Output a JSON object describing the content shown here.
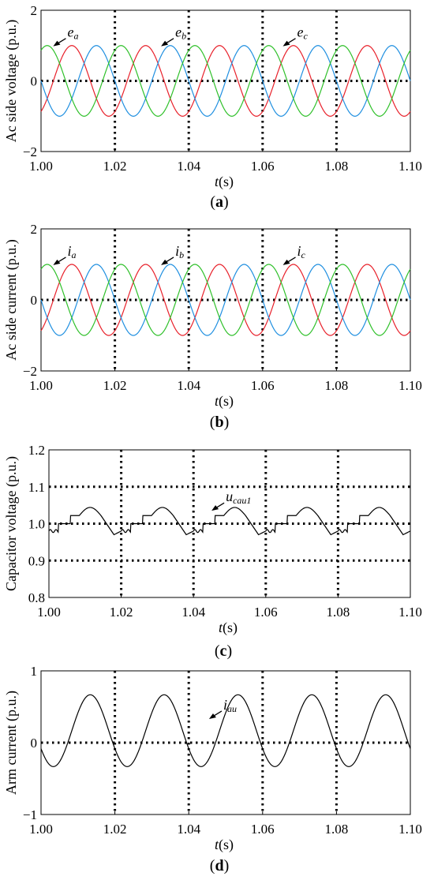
{
  "chart_data": [
    {
      "id": "a",
      "type": "line",
      "caption": {
        "open": "(",
        "letter": "a",
        "close": ")"
      },
      "ylabel": "Ac side voltage  (p.u.)",
      "xlabel": {
        "var": "t",
        "unit": "(s)"
      },
      "xlim": [
        1.0,
        1.1
      ],
      "ylim": [
        -2,
        2
      ],
      "xticks": [
        "1.00",
        "1.02",
        "1.04",
        "1.06",
        "1.08",
        "1.10"
      ],
      "yticks": [
        "2",
        "0",
        "−2"
      ],
      "grid": "dotted",
      "series": [
        {
          "name": "e_a",
          "color": "#e8202a",
          "amplitude": 1.0,
          "frequency_hz": 50,
          "phase_deg": -60
        },
        {
          "name": "e_b",
          "color": "#1f8fe0",
          "amplitude": 1.0,
          "frequency_hz": 50,
          "phase_deg": -180
        },
        {
          "name": "e_c",
          "color": "#2fc02a",
          "amplitude": 1.0,
          "frequency_hz": 50,
          "phase_deg": 60
        }
      ],
      "annotations": [
        {
          "base": "e",
          "sub": "a",
          "x": 1.0033,
          "y": 0.98
        },
        {
          "base": "e",
          "sub": "b",
          "x": 1.0325,
          "y": 0.98
        },
        {
          "base": "e",
          "sub": "c",
          "x": 1.0655,
          "y": 0.98
        }
      ]
    },
    {
      "id": "b",
      "type": "line",
      "caption": {
        "open": "(",
        "letter": "b",
        "close": ")"
      },
      "ylabel": "Ac side current  (p.u.)",
      "xlabel": {
        "var": "t",
        "unit": "(s)"
      },
      "xlim": [
        1.0,
        1.1
      ],
      "ylim": [
        -2,
        2
      ],
      "xticks": [
        "1.00",
        "1.02",
        "1.04",
        "1.06",
        "1.08",
        "1.10"
      ],
      "yticks": [
        "2",
        "0",
        "−2"
      ],
      "grid": "dotted",
      "series": [
        {
          "name": "i_a",
          "color": "#e8202a",
          "amplitude": 1.0,
          "frequency_hz": 50,
          "phase_deg": -60
        },
        {
          "name": "i_b",
          "color": "#1f8fe0",
          "amplitude": 1.0,
          "frequency_hz": 50,
          "phase_deg": -180
        },
        {
          "name": "i_c",
          "color": "#2fc02a",
          "amplitude": 1.0,
          "frequency_hz": 50,
          "phase_deg": 60
        }
      ],
      "annotations": [
        {
          "base": "i",
          "sub": "a",
          "x": 1.0033,
          "y": 0.98
        },
        {
          "base": "i",
          "sub": "b",
          "x": 1.0325,
          "y": 0.98
        },
        {
          "base": "i",
          "sub": "c",
          "x": 1.0655,
          "y": 0.98
        }
      ]
    },
    {
      "id": "c",
      "type": "line",
      "caption": {
        "open": "(",
        "letter": "c",
        "close": ")"
      },
      "ylabel": "Capacitor voltage (p.u.)",
      "xlabel": {
        "var": "t",
        "unit": "(s)"
      },
      "xlim": [
        1.0,
        1.1
      ],
      "ylim": [
        0.8,
        1.2
      ],
      "xticks": [
        "1.00",
        "1.02",
        "1.04",
        "1.06",
        "1.08",
        "1.10"
      ],
      "yticks": [
        "1.2",
        "1.1",
        "1.0",
        "0.9",
        "0.8"
      ],
      "grid": "dotted",
      "series": [
        {
          "name": "u_cau1",
          "color": "#000000",
          "mean": 1.0,
          "ripple_range": [
            0.97,
            1.045
          ],
          "frequency_hz": 50
        }
      ],
      "annotations": [
        {
          "base": "u",
          "sub": "cau1",
          "x": 1.045,
          "y": 1.035
        }
      ]
    },
    {
      "id": "d",
      "type": "line",
      "caption": {
        "open": "(",
        "letter": "d",
        "close": ")"
      },
      "ylabel": "Arm current  (p.u.)",
      "xlabel": {
        "var": "t",
        "unit": "(s)"
      },
      "xlim": [
        1.0,
        1.1
      ],
      "ylim": [
        -1,
        1
      ],
      "xticks": [
        "1.00",
        "1.02",
        "1.04",
        "1.06",
        "1.08",
        "1.10"
      ],
      "yticks": [
        "1",
        "0",
        "−1"
      ],
      "grid": "dotted",
      "series": [
        {
          "name": "i_au",
          "color": "#000000",
          "offset": 0.167,
          "amplitude": 0.5,
          "frequency_hz": 50,
          "phase_deg": -150
        }
      ],
      "annotations": [
        {
          "base": "i",
          "sub": "au",
          "x": 1.0455,
          "y": 0.33
        }
      ]
    }
  ]
}
